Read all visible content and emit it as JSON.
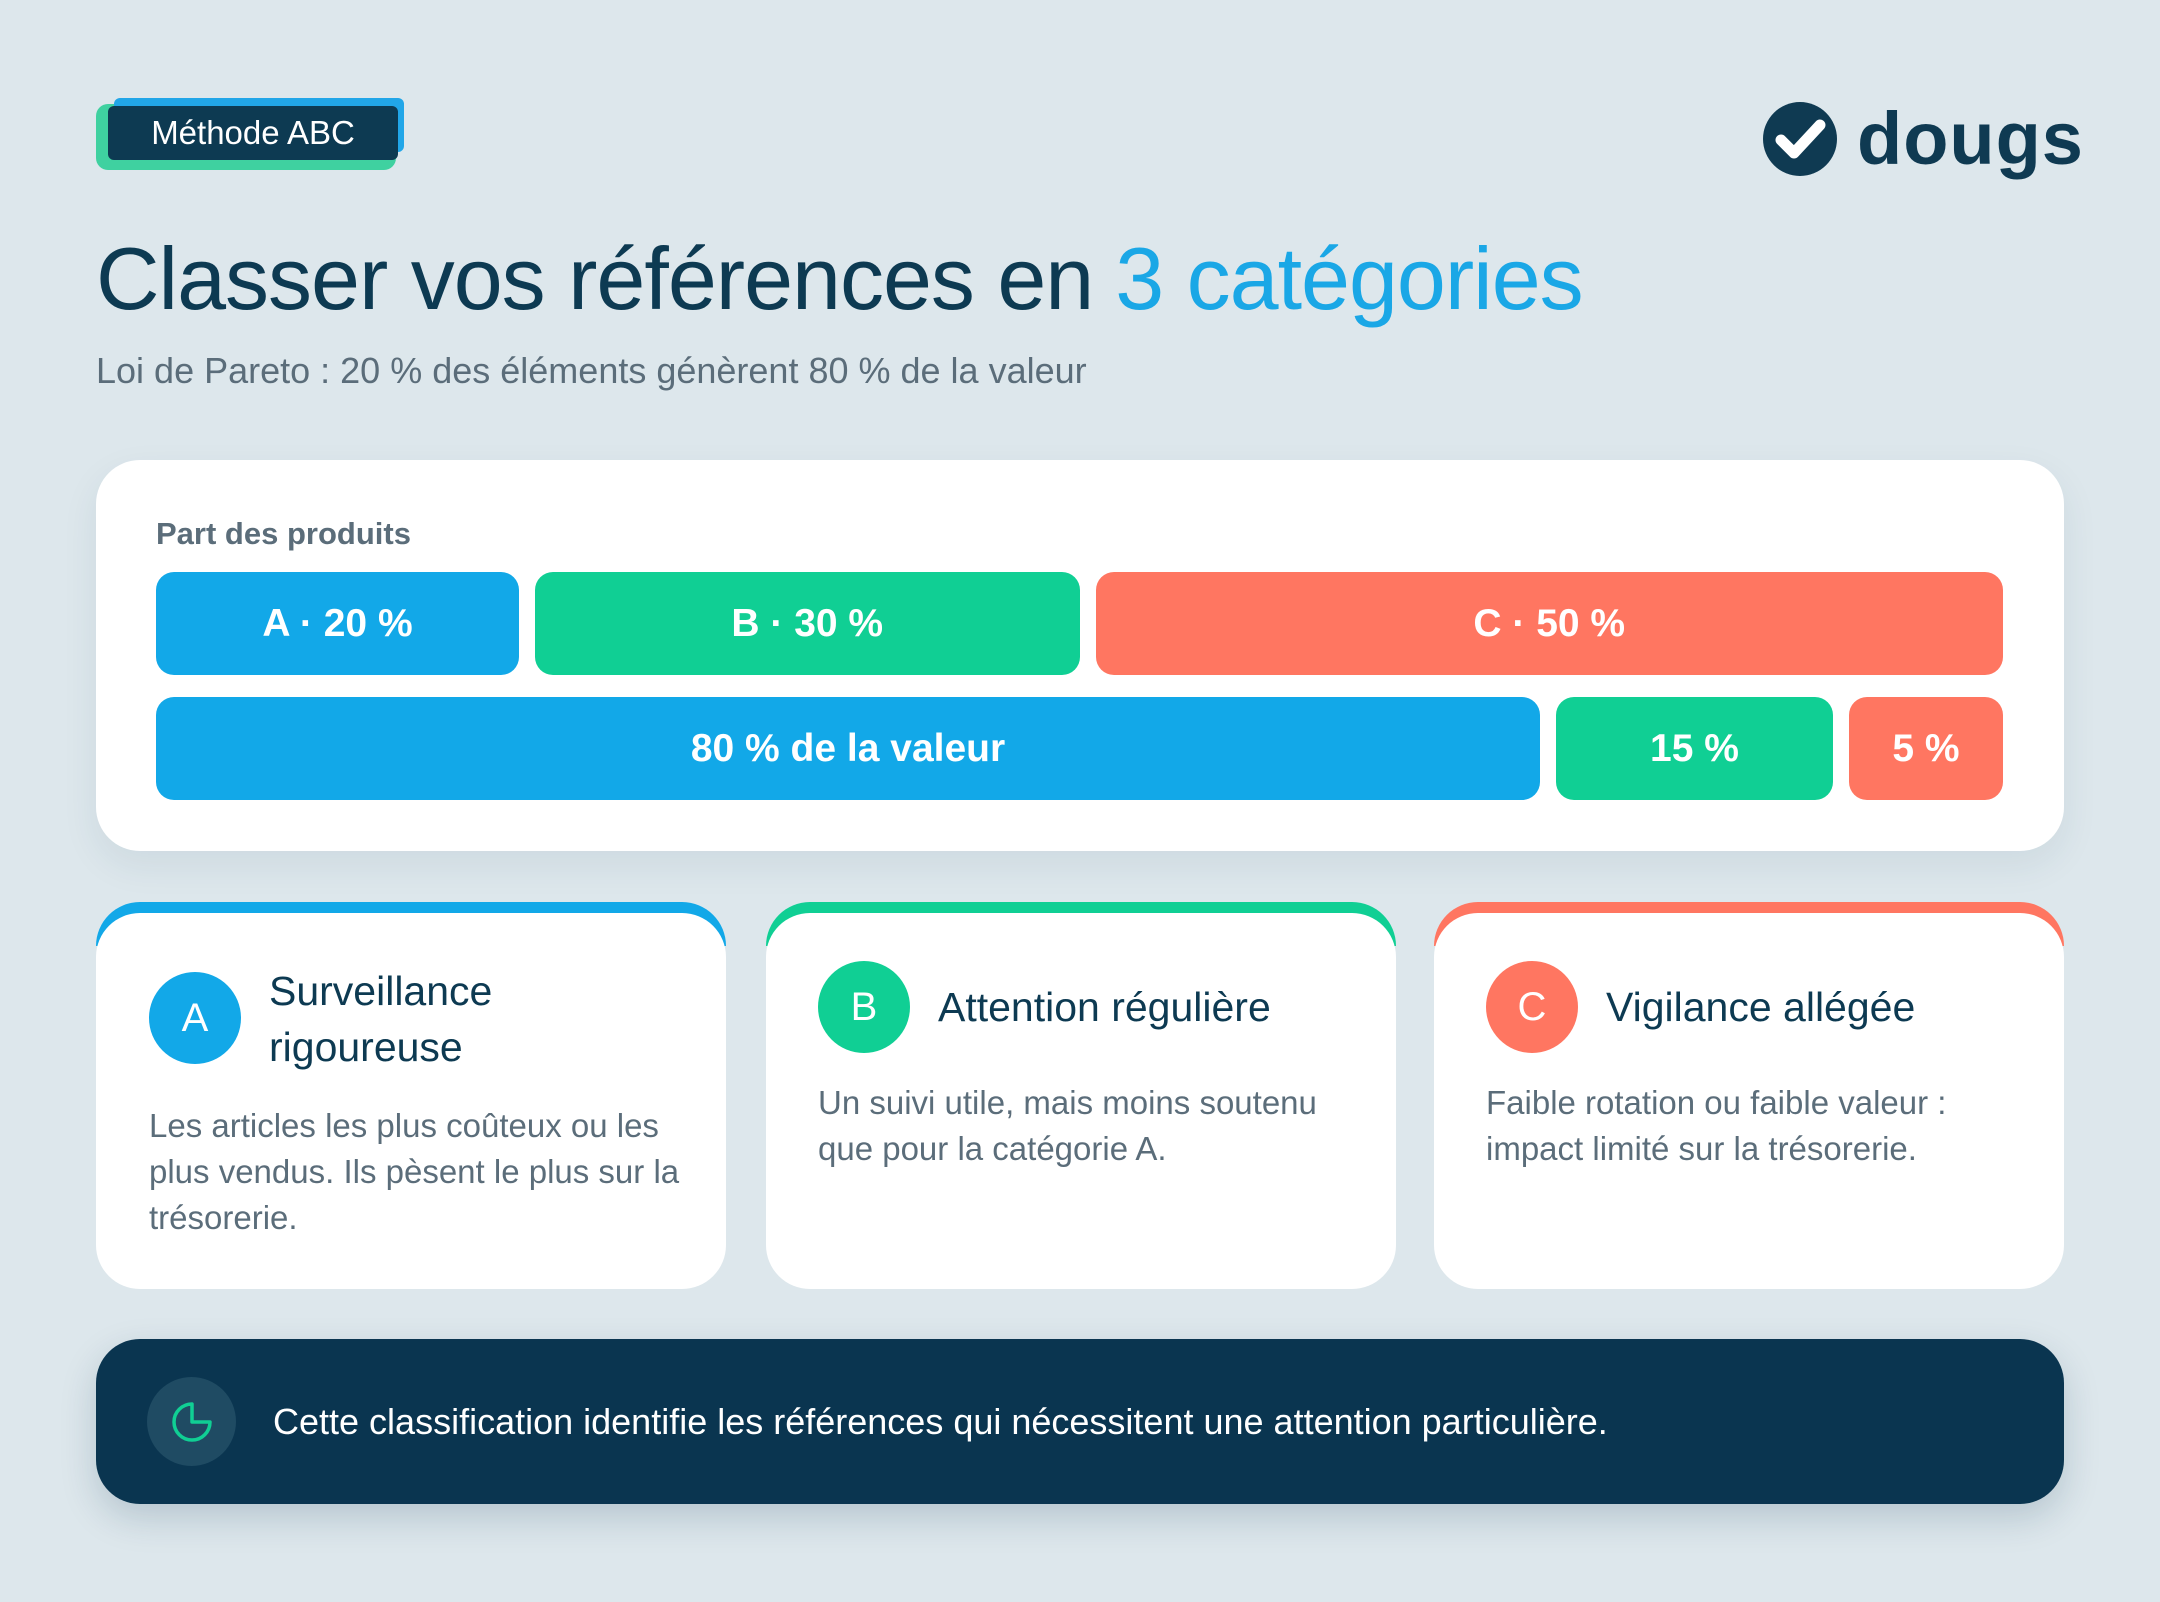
{
  "badge": "Méthode ABC",
  "logo": "dougs",
  "header": {
    "title": "Classer vos références en",
    "title_highlight": "3 catégories",
    "subtitle": "Loi de Pareto : 20 % des éléments génèrent 80 % de la valeur"
  },
  "distribution": {
    "label": "Part des produits",
    "rows": [
      [
        "A · 20 %",
        "B · 30 %",
        "C · 50 %"
      ],
      [
        "80 % de la valeur",
        "15 %",
        "5 %"
      ]
    ]
  },
  "cards": [
    {
      "letter": "A",
      "title": "Surveillance rigoureuse",
      "text": "Les articles les plus coûteux ou les plus vendus. Ils pèsent le plus sur la trésorerie."
    },
    {
      "letter": "B",
      "title": "Attention régulière",
      "text": "Un suivi utile, mais moins soutenu que pour la catégorie A."
    },
    {
      "letter": "C",
      "title": "Vigilance allégée",
      "text": "Faible rotation ou faible valeur : impact limité sur la trésorerie."
    }
  ],
  "footer": {
    "text": "Cette classification identifie les références qui nécessitent une attention particulière."
  }
}
